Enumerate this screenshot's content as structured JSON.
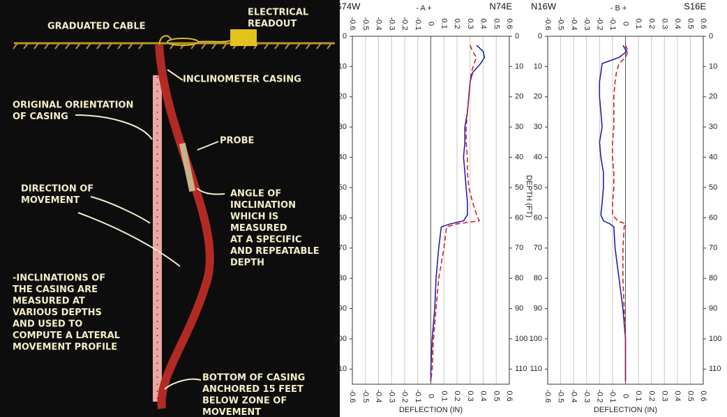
{
  "diagram": {
    "labels": [
      {
        "lines": [
          "GRADUATED CABLE"
        ]
      },
      {
        "lines": [
          "ELECTRICAL",
          "READOUT"
        ]
      },
      {
        "lines": [
          "INCLINOMETER CASING"
        ]
      },
      {
        "lines": [
          "ORIGINAL ORIENTATION",
          "OF CASING"
        ]
      },
      {
        "lines": [
          "PROBE"
        ]
      },
      {
        "lines": [
          "DIRECTION OF",
          "MOVEMENT"
        ]
      },
      {
        "lines": [
          "ANGLE OF",
          "INCLINATION",
          "WHICH IS",
          "MEASURED",
          "AT A SPECIFIC",
          "AND REPEATABLE",
          "DEPTH"
        ]
      },
      {
        "lines": [
          "-INCLINATIONS OF",
          "THE CASING ARE",
          "MEASURED AT",
          "VARIOUS DEPTHS",
          "AND USED TO",
          "COMPUTE A LATERAL",
          "MOVEMENT PROFILE"
        ]
      },
      {
        "lines": [
          "BOTTOM OF CASING",
          "ANCHORED 15 FEET",
          "BELOW ZONE OF",
          "MOVEMENT"
        ]
      }
    ]
  },
  "chart_data": [
    {
      "type": "line",
      "title": "- A +",
      "left_label": "S74W",
      "right_label": "N74E",
      "xlabel": "DEFLECTION (IN)",
      "ylabel": "DEPTH (FT)",
      "xlim": [
        -0.6,
        0.6
      ],
      "xticks": [
        -0.6,
        -0.5,
        -0.4,
        -0.3,
        -0.2,
        -0.1,
        0,
        0.1,
        0.2,
        0.3,
        0.4,
        0.5,
        0.6
      ],
      "ylim": [
        0,
        115
      ],
      "yticks": [
        0,
        10,
        20,
        30,
        40,
        50,
        60,
        70,
        80,
        90,
        100,
        110
      ],
      "invert_y": true,
      "grid": true,
      "y": [
        3,
        5,
        7,
        9,
        12,
        15,
        20,
        25,
        30,
        35,
        40,
        45,
        50,
        55,
        59,
        61,
        62,
        63,
        70,
        80,
        90,
        100,
        110,
        114
      ],
      "series": [
        {
          "color": "#2020b0",
          "line_style": "solid",
          "values": [
            0.35,
            0.4,
            0.41,
            0.38,
            0.32,
            0.3,
            0.29,
            0.28,
            0.26,
            0.26,
            0.25,
            0.26,
            0.27,
            0.28,
            0.28,
            0.25,
            0.15,
            0.08,
            0.06,
            0.04,
            0.03,
            0.01,
            0,
            0
          ]
        },
        {
          "color": "#d02020",
          "line_style": "dashed",
          "values": [
            0.3,
            0.32,
            0.35,
            0.33,
            0.31,
            0.3,
            0.29,
            0.28,
            0.27,
            0.27,
            0.28,
            0.28,
            0.29,
            0.32,
            0.35,
            0.37,
            0.2,
            0.12,
            0.1,
            0.06,
            0.04,
            0.02,
            0.01,
            0
          ]
        }
      ]
    },
    {
      "type": "line",
      "title": "- B +",
      "left_label": "N16W",
      "right_label": "S16E",
      "xlabel": "DEFLECTION (IN)",
      "xlim": [
        -0.6,
        0.6
      ],
      "xticks": [
        -0.6,
        -0.5,
        -0.4,
        -0.3,
        -0.2,
        -0.1,
        0,
        0.1,
        0.2,
        0.3,
        0.4,
        0.5,
        0.6
      ],
      "ylim": [
        0,
        115
      ],
      "yticks": [
        0,
        10,
        20,
        30,
        40,
        50,
        60,
        70,
        80,
        90,
        100,
        110
      ],
      "invert_y": true,
      "grid": true,
      "y": [
        3,
        5,
        7,
        9,
        12,
        15,
        20,
        25,
        30,
        35,
        40,
        45,
        50,
        55,
        59,
        61,
        62,
        63,
        70,
        80,
        90,
        100,
        110,
        114
      ],
      "series": [
        {
          "color": "#2020b0",
          "line_style": "solid",
          "values": [
            -0.02,
            0.01,
            -0.05,
            -0.18,
            -0.19,
            -0.2,
            -0.2,
            -0.19,
            -0.18,
            -0.2,
            -0.19,
            -0.17,
            -0.17,
            -0.18,
            -0.19,
            -0.17,
            -0.12,
            -0.09,
            -0.08,
            -0.05,
            -0.02,
            0,
            0,
            0
          ]
        },
        {
          "color": "#d02020",
          "line_style": "dashed",
          "values": [
            0,
            0.02,
            0,
            -0.05,
            -0.07,
            -0.08,
            -0.09,
            -0.09,
            -0.09,
            -0.1,
            -0.1,
            -0.09,
            -0.09,
            -0.1,
            -0.1,
            -0.06,
            0,
            -0.01,
            -0.02,
            -0.02,
            -0.01,
            0,
            0,
            0
          ]
        }
      ]
    }
  ]
}
